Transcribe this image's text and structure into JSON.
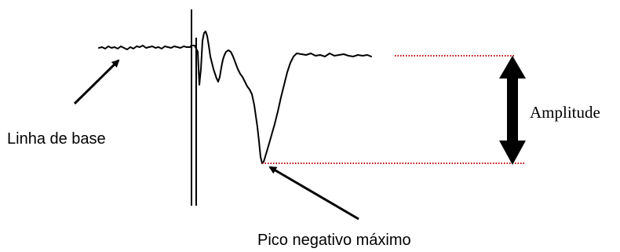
{
  "labels": {
    "baseline": "Linha de base",
    "negative_peak": "Pico negativo máximo",
    "amplitude": "Amplitude"
  },
  "colors": {
    "trace": "#000000",
    "reference_lines": "#c00000",
    "arrows": "#000000",
    "background": "#ffffff"
  }
}
